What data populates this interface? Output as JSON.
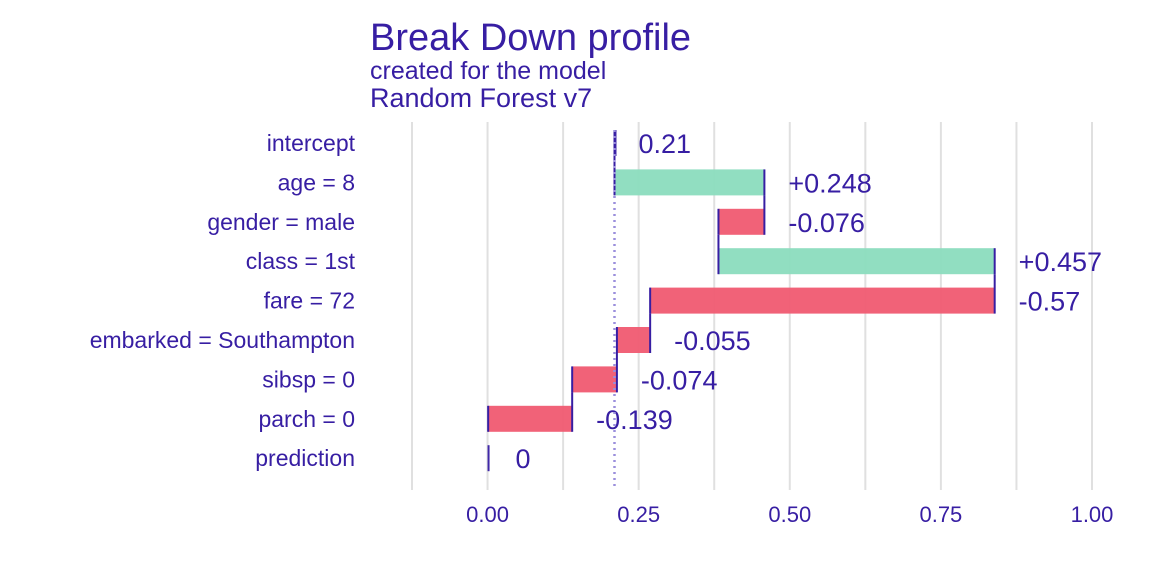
{
  "chart_data": {
    "type": "bar",
    "title": "Break Down profile",
    "subtitle_line1": "created for the  model",
    "subtitle_line2": "Random Forest v7",
    "categories": [
      "intercept",
      "age = 8",
      "gender = male",
      "class = 1st",
      "fare = 72",
      "embarked = Southampton",
      "sibsp = 0",
      "parch = 0",
      "prediction"
    ],
    "contributions": [
      0.21,
      0.248,
      -0.076,
      0.457,
      -0.57,
      -0.055,
      -0.074,
      -0.139,
      0
    ],
    "value_labels": [
      "0.21",
      "+0.248",
      "-0.076",
      "+0.457",
      "-0.57",
      "-0.055",
      "-0.074",
      "-0.139",
      "0"
    ],
    "xlim": [
      -0.125,
      1.0
    ],
    "xticks": [
      0.0,
      0.25,
      0.5,
      0.75,
      1.0
    ],
    "xtick_labels": [
      "0.00",
      "0.25",
      "0.50",
      "0.75",
      "1.00"
    ],
    "baseline": 0.21,
    "grid": true,
    "colors": {
      "positive": "#8bdcbe",
      "negative": "#f05a71",
      "prediction": "#371ea3",
      "text": "#371ea3",
      "grid": "#e0e0e0",
      "baseline": "#9b8fdc"
    }
  }
}
